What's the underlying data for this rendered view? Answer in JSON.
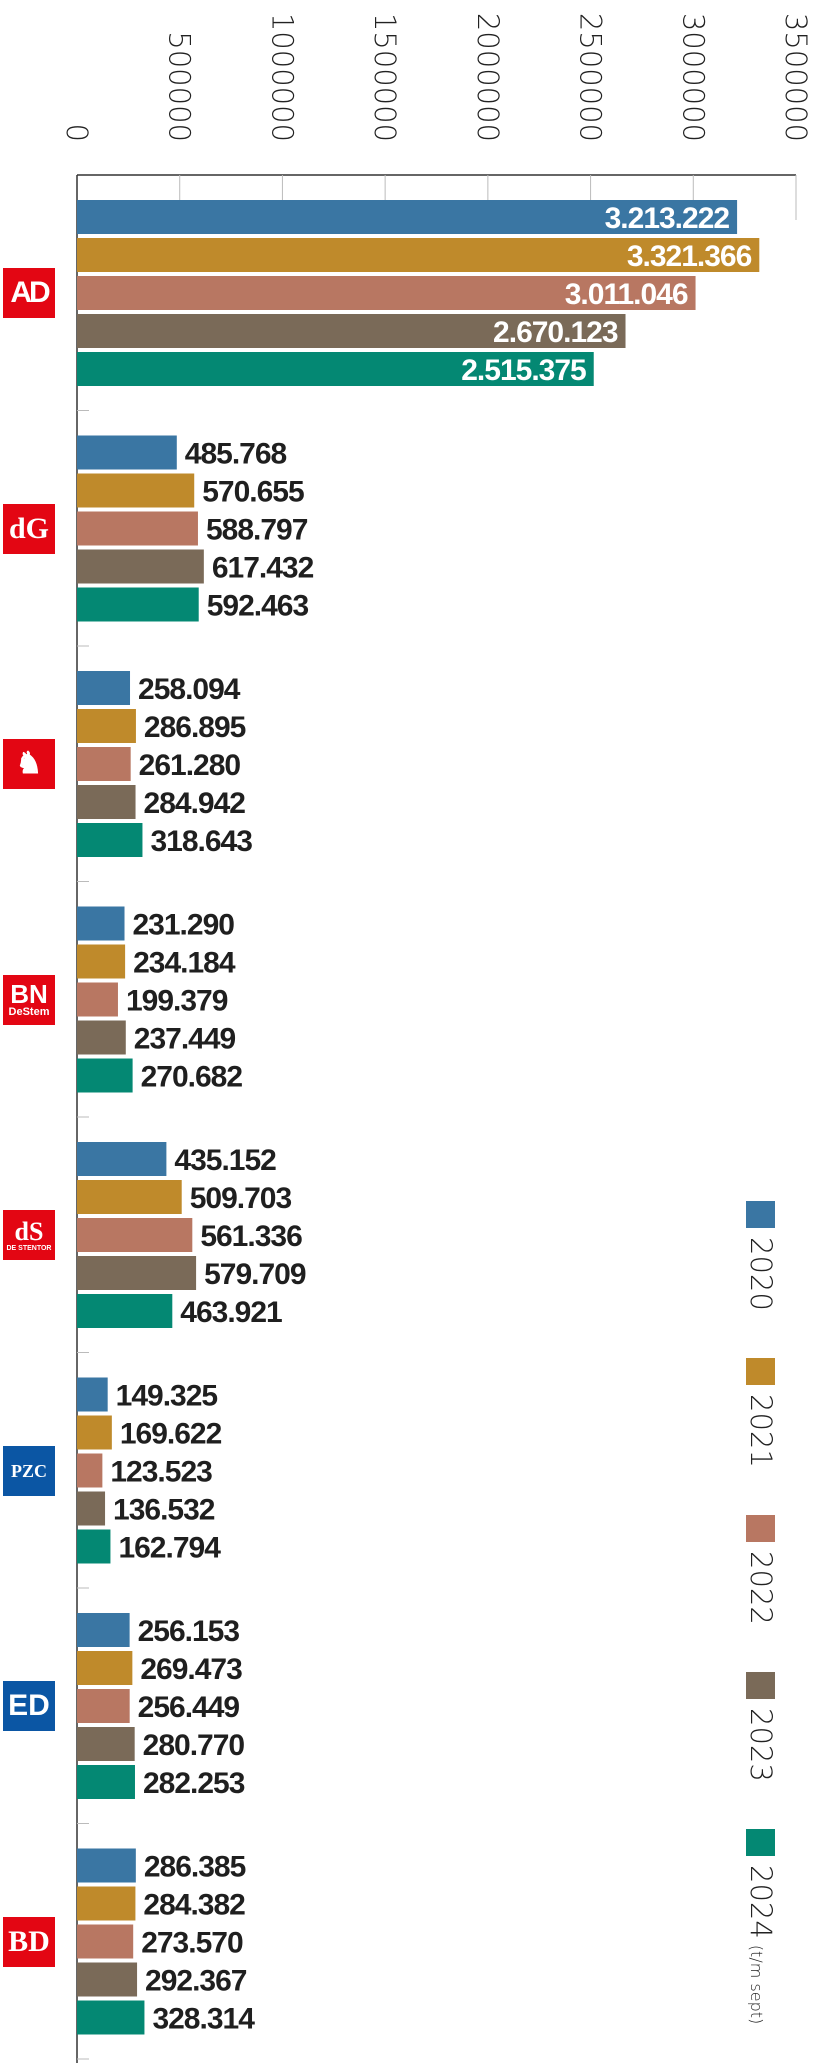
{
  "chart_data": {
    "type": "bar",
    "orientation": "horizontal",
    "title": "",
    "xlabel": "",
    "ylabel": "",
    "xlim": [
      0,
      3500000
    ],
    "ticks": [
      "0",
      "500000",
      "1000000",
      "1500000",
      "2000000",
      "2500000",
      "3000000",
      "3500000"
    ],
    "tick_values": [
      0,
      500000,
      1000000,
      1500000,
      2000000,
      2500000,
      3000000,
      3500000
    ],
    "grid": false,
    "legend_placement": "bottom-right",
    "categories": [
      "AD",
      "dG",
      "Tubantia",
      "BN DeStem",
      "De Stentor",
      "PZC",
      "ED",
      "BD"
    ],
    "series": [
      {
        "name": "2020",
        "color": "#3a76a3",
        "values": [
          3213222,
          485768,
          258094,
          231290,
          435152,
          149325,
          256153,
          286385
        ],
        "labels": [
          "3.213.222",
          "485.768",
          "258.094",
          "231.290",
          "435.152",
          "149.325",
          "256.153",
          "286.385"
        ]
      },
      {
        "name": "2021",
        "color": "#bf8a2b",
        "values": [
          3321366,
          570655,
          286895,
          234184,
          509703,
          169622,
          269473,
          284382
        ],
        "labels": [
          "3.321.366",
          "570.655",
          "286.895",
          "234.184",
          "509.703",
          "169.622",
          "269.473",
          "284.382"
        ]
      },
      {
        "name": "2022",
        "color": "#b87762",
        "values": [
          3011046,
          588797,
          261280,
          199379,
          561336,
          123523,
          256449,
          273570
        ],
        "labels": [
          "3.011.046",
          "588.797",
          "261.280",
          "199.379",
          "561.336",
          "123.523",
          "256.449",
          "273.570"
        ]
      },
      {
        "name": "2023",
        "color": "#7a6a58",
        "values": [
          2670123,
          617432,
          284942,
          237449,
          579709,
          136532,
          280770,
          292367
        ],
        "labels": [
          "2.670.123",
          "617.432",
          "284.942",
          "237.449",
          "579.709",
          "136.532",
          "280.770",
          "292.367"
        ]
      },
      {
        "name": "2024",
        "note": "(t/m sept)",
        "color": "#048873",
        "values": [
          2515375,
          592463,
          318643,
          270682,
          463921,
          162794,
          282253,
          328314
        ],
        "labels": [
          "2.515.375",
          "592.463",
          "318.643",
          "270.682",
          "463.921",
          "162.794",
          "282.253",
          "328.314"
        ]
      }
    ]
  },
  "logos": [
    {
      "name": "AD",
      "text": "AD",
      "color": "#e30613"
    },
    {
      "name": "dG",
      "text": "dG",
      "color": "#e30613"
    },
    {
      "name": "Tubantia",
      "text": "",
      "color": "#e30613"
    },
    {
      "name": "BN DeStem",
      "text": "BN",
      "sub": "DeStem",
      "color": "#e30613"
    },
    {
      "name": "De Stentor",
      "text": "dS",
      "sub": "DE STENTOR",
      "color": "#e30613"
    },
    {
      "name": "PZC",
      "text": "PZC",
      "color": "#0b56a4"
    },
    {
      "name": "ED",
      "text": "ED",
      "color": "#0b56a4"
    },
    {
      "name": "BD",
      "text": "BD",
      "color": "#e30613"
    }
  ]
}
